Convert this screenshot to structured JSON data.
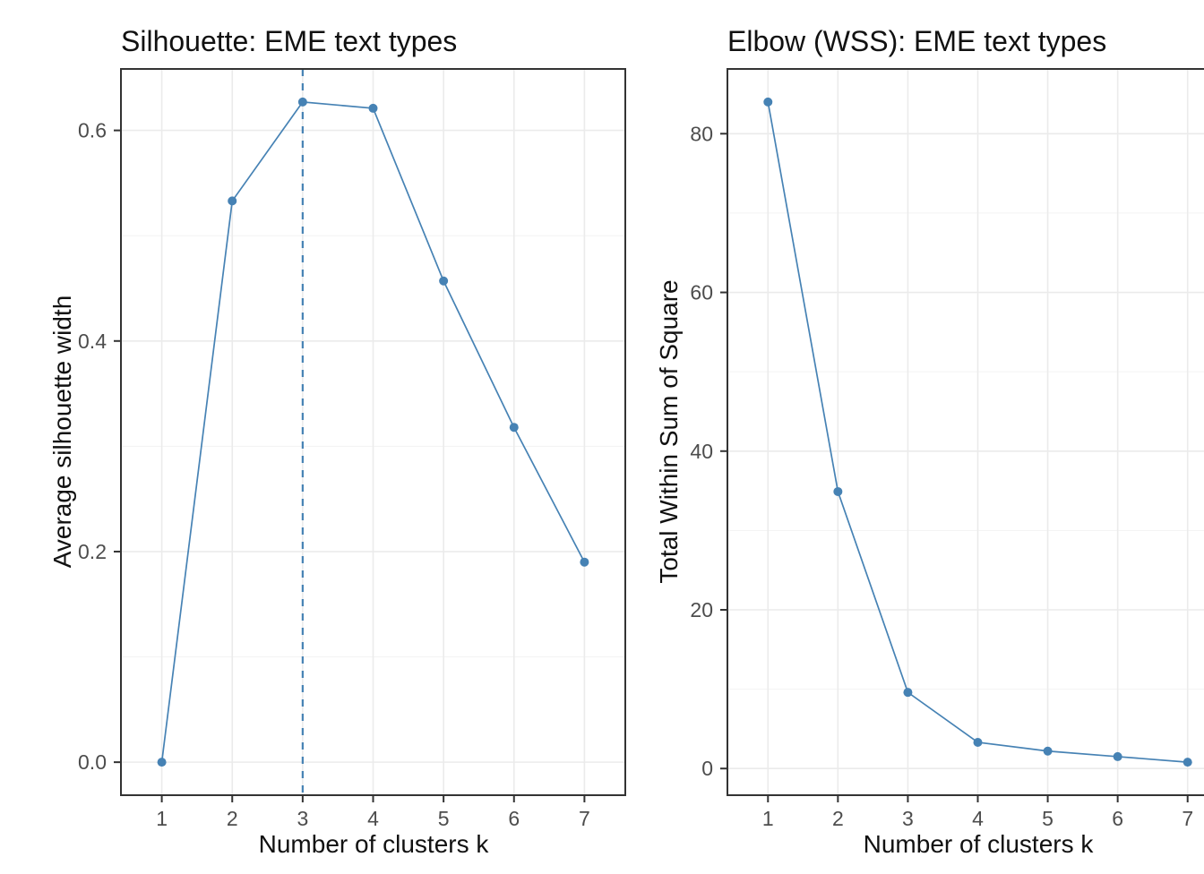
{
  "page": {
    "background": "#FFFFFF",
    "description": "Cluster diagnostics: silhouette and elbow plots for EME text types"
  },
  "colors": {
    "series": "#4682B4",
    "vline": "#4682B4",
    "grid_major": "#EBEBEB",
    "grid_minor": "#F3F3F3",
    "panel_border": "#333333",
    "tick": "#333333",
    "tick_label": "#4D4D4D",
    "text": "#111111"
  },
  "chart_data": [
    {
      "type": "line",
      "title": "Silhouette: EME text types",
      "xlabel": "Number of clusters k",
      "ylabel": "Average silhouette width",
      "x": [
        1,
        2,
        3,
        4,
        5,
        6,
        7
      ],
      "values": [
        0.0,
        0.533,
        0.627,
        0.621,
        0.457,
        0.318,
        0.19
      ],
      "x_tick_labels": [
        "1",
        "2",
        "3",
        "4",
        "5",
        "6",
        "7"
      ],
      "y_major_breaks": [
        0.0,
        0.2,
        0.4,
        0.6
      ],
      "y_tick_labels": [
        "0.0",
        "0.2",
        "0.4",
        "0.6"
      ],
      "y_minor_breaks": [
        0.1,
        0.3,
        0.5
      ],
      "ylim": [
        0.0,
        0.627
      ],
      "xlim": [
        1,
        7
      ],
      "vline": {
        "x": 3,
        "style": "dashed"
      },
      "grid": true,
      "legend": "none",
      "markers": true
    },
    {
      "type": "line",
      "title": "Elbow (WSS): EME text types",
      "xlabel": "Number of clusters k",
      "ylabel": "Total Within Sum of Square",
      "x": [
        1,
        2,
        3,
        4,
        5,
        6,
        7
      ],
      "values": [
        84,
        34.9,
        9.6,
        3.3,
        2.2,
        1.5,
        0.8
      ],
      "x_tick_labels": [
        "1",
        "2",
        "3",
        "4",
        "5",
        "6",
        "7"
      ],
      "y_major_breaks": [
        0,
        20,
        40,
        60,
        80
      ],
      "y_tick_labels": [
        "0",
        "20",
        "40",
        "60",
        "80"
      ],
      "y_minor_breaks": [
        10,
        30,
        50,
        70
      ],
      "ylim": [
        0.8,
        84
      ],
      "xlim": [
        1,
        7
      ],
      "vline": null,
      "grid": true,
      "legend": "none",
      "markers": true
    }
  ]
}
